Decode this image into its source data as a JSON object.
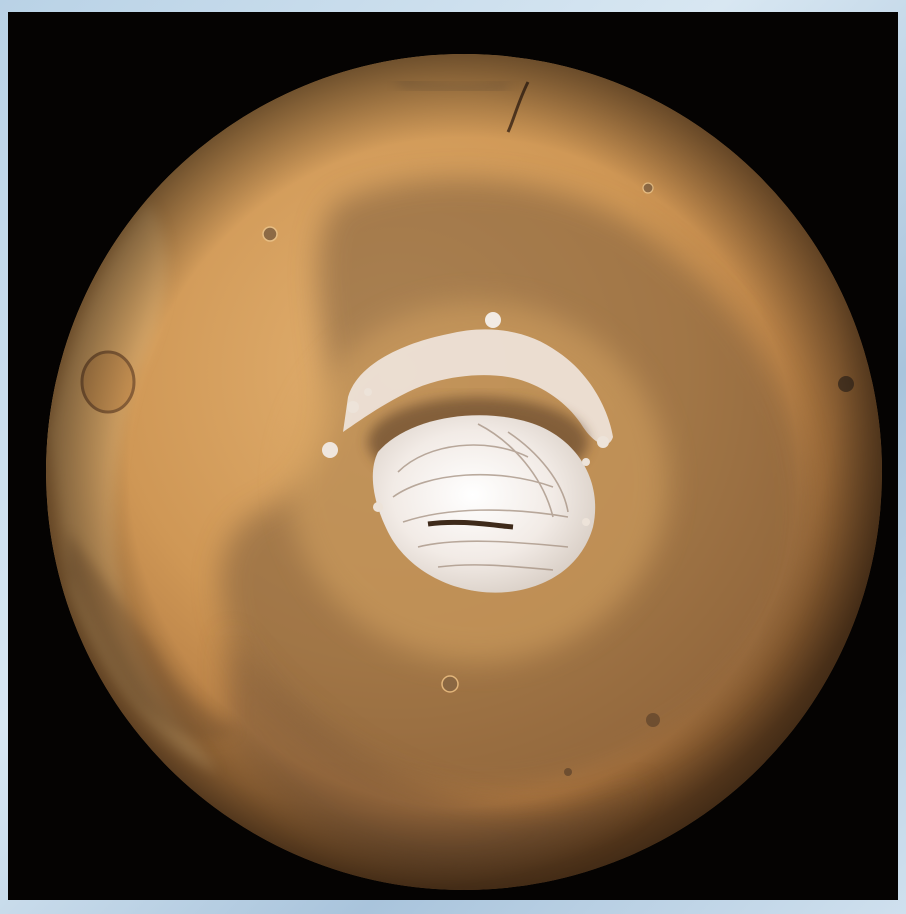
{
  "scene": {
    "subject": "planet-mars-north-pole",
    "colors": {
      "frame": "#c6dceb",
      "space": "#050302",
      "surface": "#c8904e",
      "surface_light": "#e0ad6a",
      "dark_region": "#6f5236",
      "ice_cap": "#f3ece6"
    }
  }
}
